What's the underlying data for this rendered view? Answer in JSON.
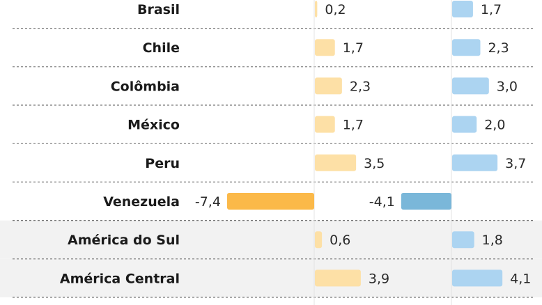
{
  "chart_data": {
    "type": "bar",
    "orientation": "horizontal",
    "grid": false,
    "categories": [
      "Brasil",
      "Chile",
      "Colômbia",
      "México",
      "Peru",
      "Venezuela",
      "América do Sul",
      "América Central"
    ],
    "category_labels": [
      "Brasil",
      "Chile",
      "Colômbia",
      "México",
      "Peru",
      "Venezuela",
      "América do Sul",
      "América Central"
    ],
    "series": [
      {
        "values": [
          0.2,
          1.7,
          2.3,
          1.7,
          3.5,
          -7.4,
          0.6,
          3.9
        ],
        "labels": [
          "0,2",
          "1,7",
          "2,3",
          "1,7",
          "3,5",
          "-7,4",
          "0,6",
          "3,9"
        ],
        "color": "#fde0a6",
        "highlight_color": "#fbb949"
      },
      {
        "values": [
          1.7,
          2.3,
          3.0,
          2.0,
          3.7,
          -4.1,
          1.8,
          4.1
        ],
        "labels": [
          "1,7",
          "2,3",
          "3,0",
          "2,0",
          "3,7",
          "-4,1",
          "1,8",
          "4,1"
        ],
        "color": "#acd4f1",
        "highlight_color": "#7ab7d9"
      }
    ],
    "highlighted_rows": [
      "Venezuela"
    ],
    "shaded_rows": [
      "América do Sul",
      "América Central"
    ],
    "colors": {
      "row_shade": "#f2f2f2",
      "divider": "#777777",
      "axis": "#e3e3e3"
    }
  }
}
